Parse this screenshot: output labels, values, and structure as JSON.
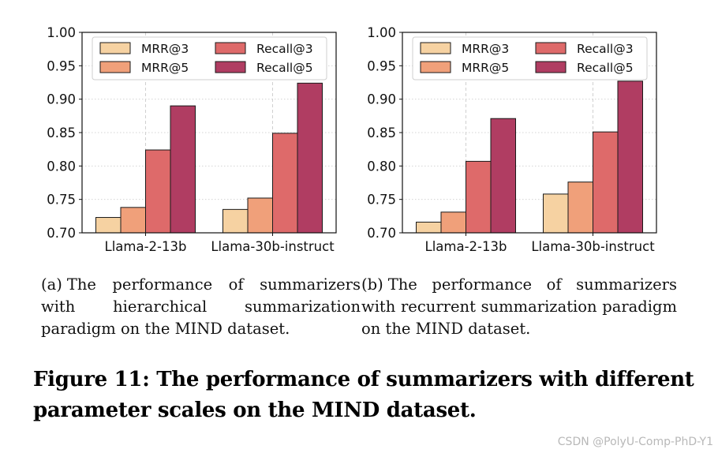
{
  "chart_data": [
    {
      "type": "bar",
      "panel": "a",
      "categories": [
        "Llama-2-13b",
        "Llama-30b-instruct"
      ],
      "series": [
        {
          "name": "MRR@3",
          "values": [
            0.723,
            0.735
          ]
        },
        {
          "name": "MRR@5",
          "values": [
            0.738,
            0.752
          ]
        },
        {
          "name": "Recall@3",
          "values": [
            0.824,
            0.849
          ]
        },
        {
          "name": "Recall@5",
          "values": [
            0.89,
            0.924
          ]
        }
      ],
      "ylim": [
        0.7,
        1.0
      ],
      "yticks": [
        "0.70",
        "0.75",
        "0.80",
        "0.85",
        "0.90",
        "0.95",
        "1.00"
      ],
      "grid": true,
      "legend": "top",
      "xlabel": "",
      "ylabel": ""
    },
    {
      "type": "bar",
      "panel": "b",
      "categories": [
        "Llama-2-13b",
        "Llama-30b-instruct"
      ],
      "series": [
        {
          "name": "MRR@3",
          "values": [
            0.716,
            0.758
          ]
        },
        {
          "name": "MRR@5",
          "values": [
            0.731,
            0.776
          ]
        },
        {
          "name": "Recall@3",
          "values": [
            0.807,
            0.851
          ]
        },
        {
          "name": "Recall@5",
          "values": [
            0.871,
            0.927
          ]
        }
      ],
      "ylim": [
        0.7,
        1.0
      ],
      "yticks": [
        "0.70",
        "0.75",
        "0.80",
        "0.85",
        "0.90",
        "0.95",
        "1.00"
      ],
      "grid": true,
      "legend": "top",
      "xlabel": "",
      "ylabel": ""
    }
  ],
  "colors": {
    "MRR@3": "#f6d2a2",
    "MRR@5": "#f0a07a",
    "Recall@3": "#de6a6a",
    "Recall@5": "#b03d62"
  },
  "subcaptions": {
    "a": {
      "tag": "(a)",
      "text": "The performance of summarizers with hierarchical summarization paradigm on the MIND dataset."
    },
    "b": {
      "tag": "(b)",
      "text": "The performance of summarizers with recurrent summarization paradigm on the MIND dataset."
    }
  },
  "figure_caption": "Figure 11: The performance of summarizers with different parameter scales on the MIND dataset.",
  "watermark": "CSDN @PolyU-Comp-PhD-Y1"
}
